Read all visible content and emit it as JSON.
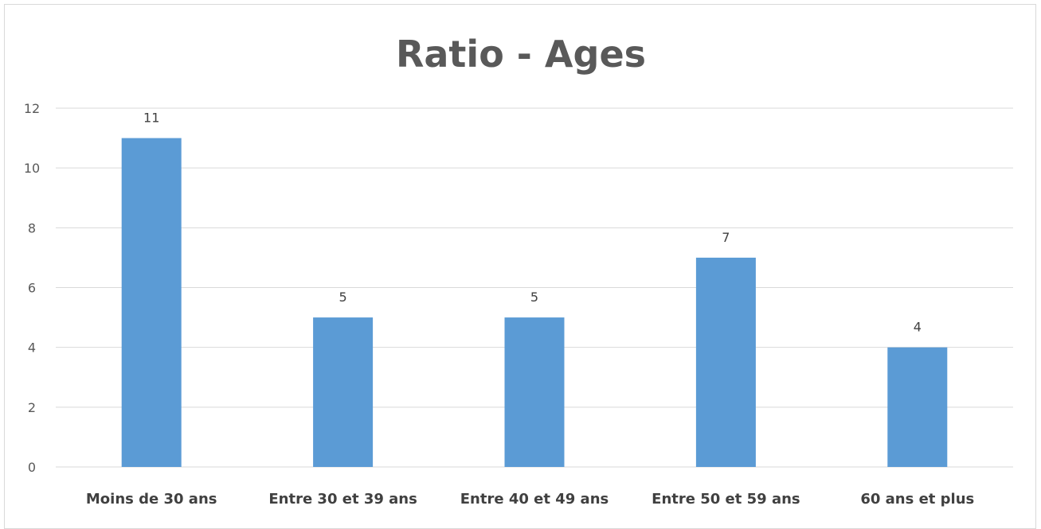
{
  "chart_data": {
    "type": "bar",
    "title": "Ratio - Ages",
    "categories": [
      "Moins de 30 ans",
      "Entre 30 et 39 ans",
      "Entre 40 et 49 ans",
      "Entre 50 et 59 ans",
      "60 ans et plus"
    ],
    "values": [
      11,
      5,
      5,
      7,
      4
    ],
    "data_labels": [
      "11",
      "5",
      "5",
      "7",
      "4"
    ],
    "ylim": [
      0,
      12
    ],
    "yticks": [
      0,
      2,
      4,
      6,
      8,
      10,
      12
    ],
    "grid": true,
    "legend": "none",
    "colors": {
      "bar": "#5b9bd5",
      "grid": "#d9d9d9"
    }
  }
}
